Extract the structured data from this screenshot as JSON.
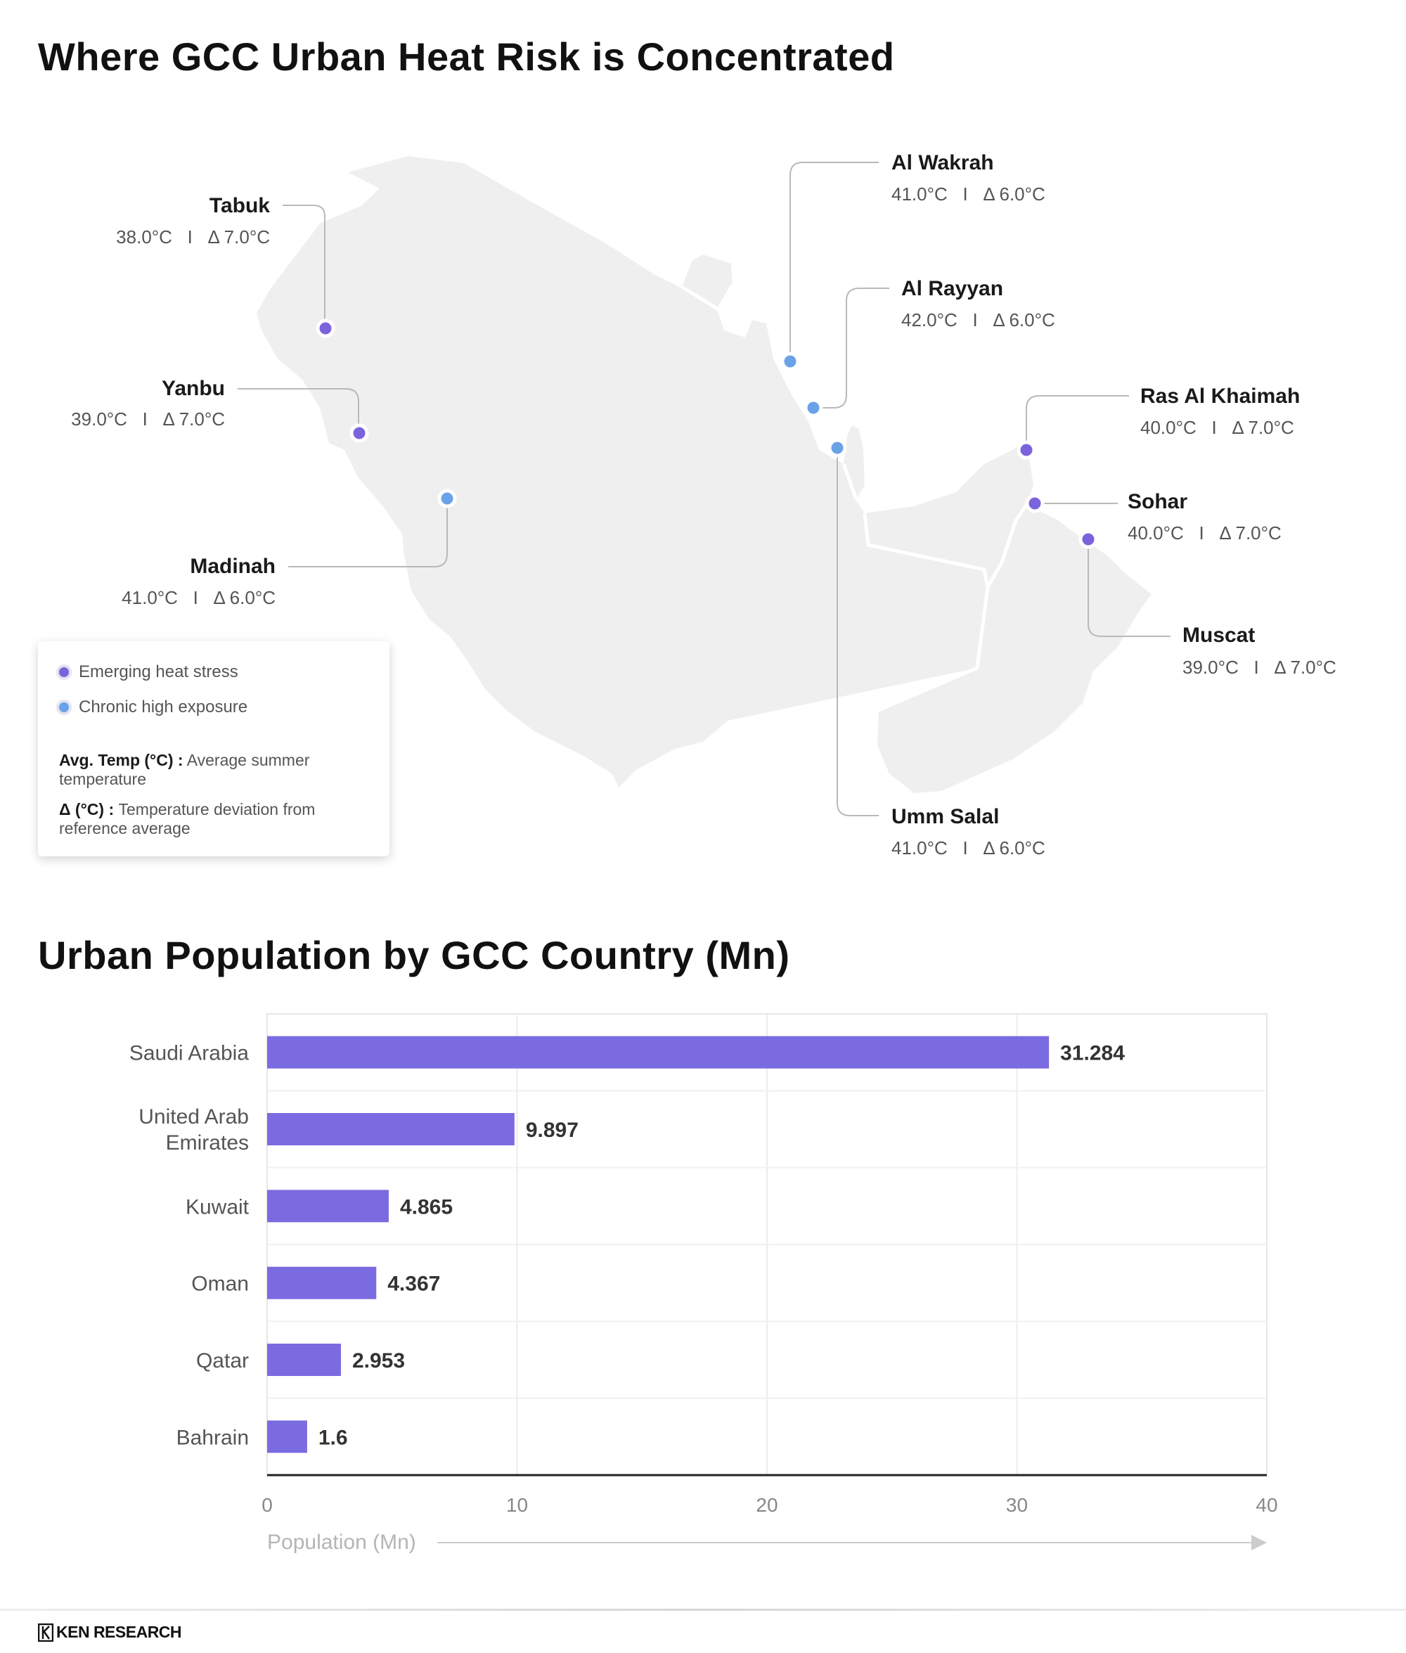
{
  "map": {
    "title": "Where GCC Urban Heat Risk is Concentrated",
    "colors": {
      "emerging": "#7b63dc",
      "chronic": "#6aa2e8",
      "land": "#efefef",
      "border": "#ffffff"
    },
    "separator": "I",
    "cities": [
      {
        "id": "tabuk",
        "name": "Tabuk",
        "stats": "38.0°C   I   Δ 7.0°C",
        "category": "emerging"
      },
      {
        "id": "yanbu",
        "name": "Yanbu",
        "stats": "39.0°C   I   Δ 7.0°C",
        "category": "emerging"
      },
      {
        "id": "madinah",
        "name": "Madinah",
        "stats": "41.0°C   I   Δ 6.0°C",
        "category": "chronic"
      },
      {
        "id": "al-wakrah",
        "name": "Al Wakrah",
        "stats": "41.0°C   I   Δ 6.0°C",
        "category": "chronic"
      },
      {
        "id": "al-rayyan",
        "name": "Al Rayyan",
        "stats": "42.0°C   I   Δ 6.0°C",
        "category": "chronic"
      },
      {
        "id": "umm-salal",
        "name": "Umm Salal",
        "stats": "41.0°C   I   Δ 6.0°C",
        "category": "chronic"
      },
      {
        "id": "ras-al-khaimah",
        "name": "Ras Al Khaimah",
        "stats": "40.0°C   I   Δ 7.0°C",
        "category": "emerging"
      },
      {
        "id": "sohar",
        "name": "Sohar",
        "stats": "40.0°C   I   Δ 7.0°C",
        "category": "emerging"
      },
      {
        "id": "muscat",
        "name": "Muscat",
        "stats": "39.0°C   I   Δ 7.0°C",
        "category": "emerging"
      }
    ],
    "legend": {
      "emerging_label": "Emerging heat stress",
      "chronic_label": "Chronic high exposure",
      "avg_temp_term": "Avg. Temp (°C) :",
      "avg_temp_desc": " Average summer temperature",
      "delta_term": "Δ (°C) :",
      "delta_desc": " Temperature deviation from reference average"
    }
  },
  "chart_data": {
    "type": "bar",
    "orientation": "horizontal",
    "title": "Urban Population by GCC Country (Mn)",
    "categories": [
      "Saudi Arabia",
      "United Arab Emirates",
      "Kuwait",
      "Oman",
      "Qatar",
      "Bahrain"
    ],
    "values": [
      31.284,
      9.897,
      4.865,
      4.367,
      2.953,
      1.6
    ],
    "value_labels": [
      "31.284",
      "9.897",
      "4.865",
      "4.367",
      "2.953",
      "1.6"
    ],
    "xlabel": "Population (Mn)",
    "ylabel": "",
    "xlim": [
      0,
      40
    ],
    "xticks": [
      0,
      10,
      20,
      30,
      40
    ],
    "grid": true,
    "bar_color": "#7b6be0"
  },
  "footer": {
    "brand": "KEN RESEARCH"
  }
}
